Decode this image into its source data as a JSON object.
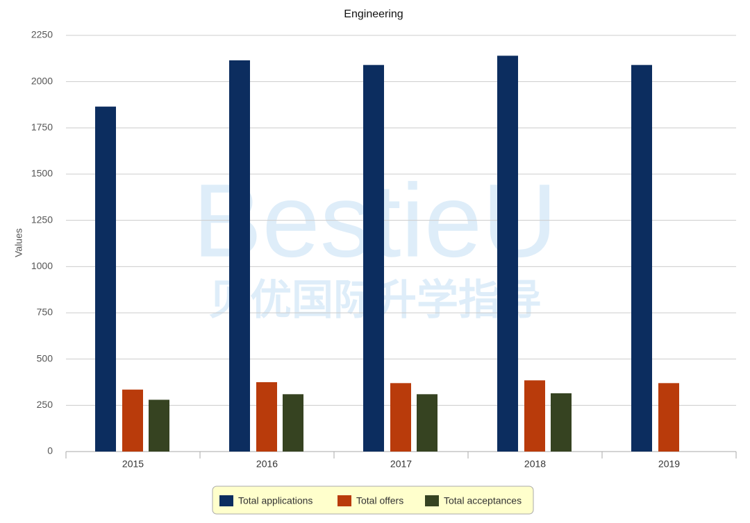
{
  "chart_data": {
    "type": "bar",
    "title": "Engineering",
    "y_label": "Values",
    "categories": [
      "2015",
      "2016",
      "2017",
      "2018",
      "2019"
    ],
    "series": [
      {
        "name": "Total applications",
        "color": "#0c2d5f",
        "values": [
          1865,
          2115,
          2090,
          2140,
          2090
        ]
      },
      {
        "name": "Total offers",
        "color": "#b93b0b",
        "values": [
          335,
          375,
          370,
          385,
          370
        ]
      },
      {
        "name": "Total acceptances",
        "color": "#364321",
        "values": [
          280,
          310,
          310,
          315,
          null
        ]
      }
    ],
    "ylim": [
      0,
      2250
    ],
    "yticks": [
      0,
      250,
      500,
      750,
      1000,
      1250,
      1500,
      1750,
      2000,
      2250
    ],
    "grid": true,
    "watermark": [
      "BestieU",
      "贝优国际升学指导"
    ]
  }
}
